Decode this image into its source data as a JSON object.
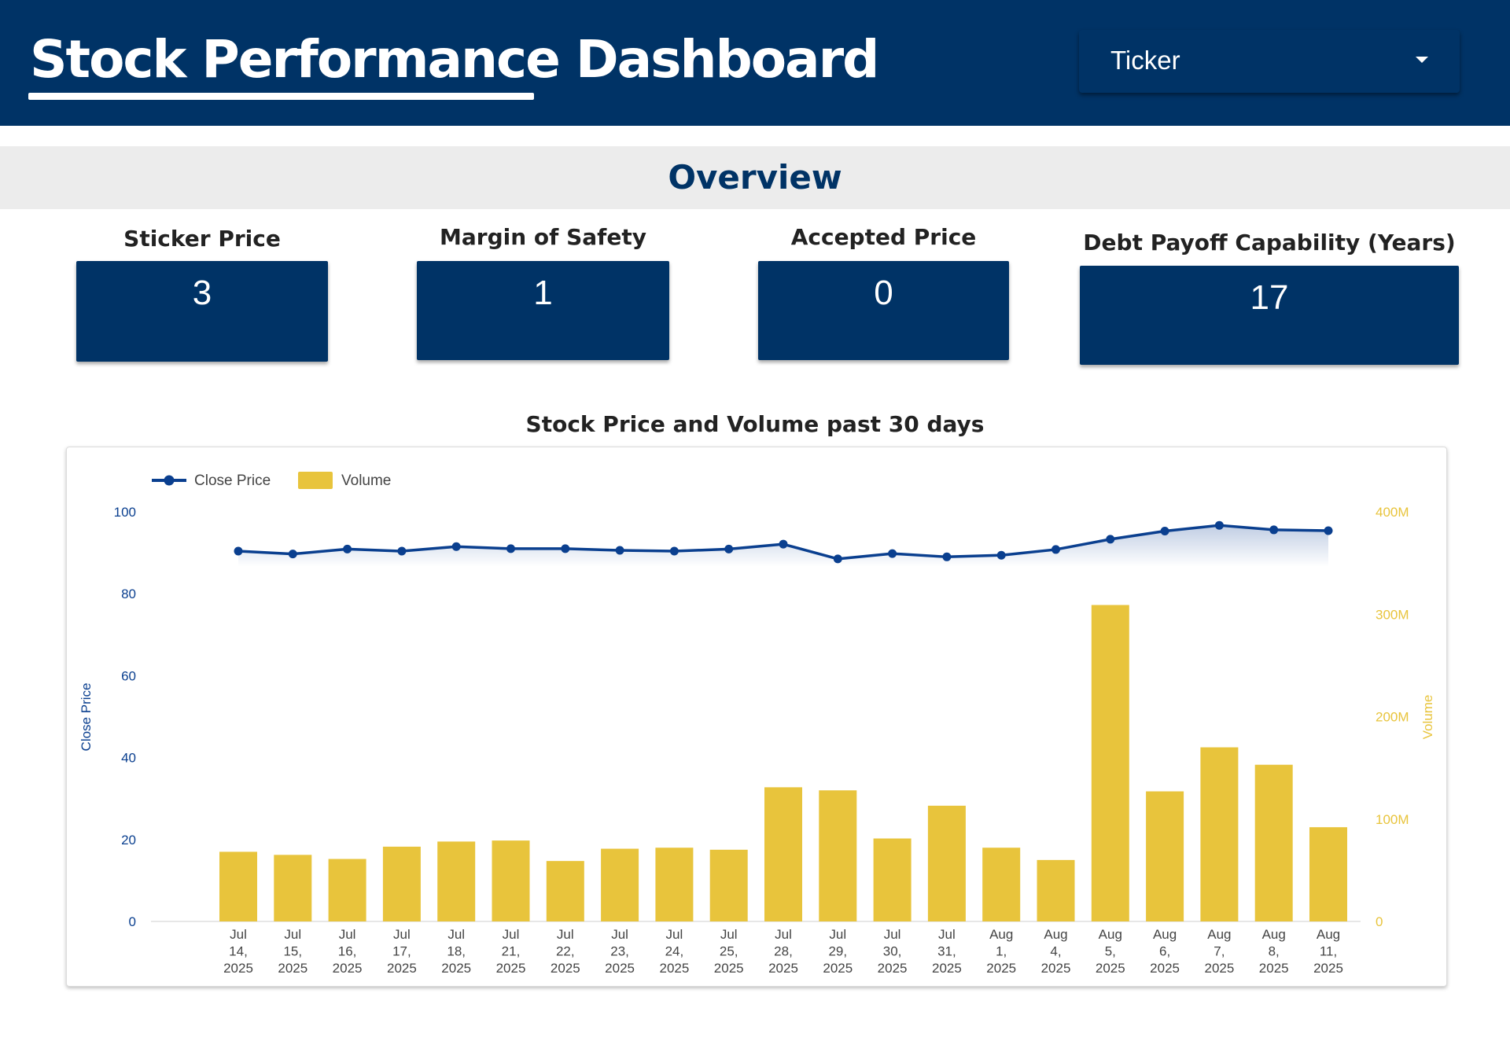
{
  "header": {
    "title": "Stock Performance Dashboard",
    "ticker_placeholder": "Ticker",
    "background_color": "#003366"
  },
  "overview": {
    "title": "Overview"
  },
  "kpis": [
    {
      "label": "Sticker Price",
      "value": "3"
    },
    {
      "label": "Margin of Safety",
      "value": "1"
    },
    {
      "label": "Accepted Price",
      "value": "0"
    },
    {
      "label": "Debt Payoff Capability (Years)",
      "value": "17"
    }
  ],
  "chart_title": "Stock Price and Volume past 30 days",
  "chart_data": {
    "type": "bar",
    "title": "Stock Price and Volume past 30 days",
    "categories": [
      "Jul 14, 2025",
      "Jul 15, 2025",
      "Jul 16, 2025",
      "Jul 17, 2025",
      "Jul 18, 2025",
      "Jul 21, 2025",
      "Jul 22, 2025",
      "Jul 23, 2025",
      "Jul 24, 2025",
      "Jul 25, 2025",
      "Jul 28, 2025",
      "Jul 29, 2025",
      "Jul 30, 2025",
      "Jul 31, 2025",
      "Aug 1, 2025",
      "Aug 4, 2025",
      "Aug 5, 2025",
      "Aug 6, 2025",
      "Aug 7, 2025",
      "Aug 8, 2025",
      "Aug 11, 2025"
    ],
    "series": [
      {
        "name": "Close Price",
        "type": "line",
        "axis": "left",
        "color": "#0a3f8f",
        "values": [
          90.4,
          89.7,
          90.9,
          90.4,
          91.5,
          91.0,
          91.0,
          90.6,
          90.4,
          90.9,
          92.1,
          88.5,
          89.8,
          89.0,
          89.4,
          90.8,
          93.3,
          95.3,
          96.7,
          95.6,
          95.4
        ]
      },
      {
        "name": "Volume",
        "type": "bar",
        "axis": "right",
        "color": "#e8c43c",
        "values": [
          68000000,
          65000000,
          61000000,
          73000000,
          78000000,
          79000000,
          59000000,
          71000000,
          72000000,
          70000000,
          131000000,
          128000000,
          81000000,
          113000000,
          72000000,
          60000000,
          309000000,
          127000000,
          170000000,
          153000000,
          92000000
        ]
      }
    ],
    "ylabel": "Close Price",
    "y2label": "Volume",
    "ylim": [
      0,
      100
    ],
    "y2lim": [
      0,
      400000000
    ],
    "yticks": [
      "0",
      "20",
      "40",
      "60",
      "80",
      "100"
    ],
    "y2ticks": [
      "0",
      "100M",
      "200M",
      "300M",
      "400M"
    ],
    "legend_position": "top-left",
    "grid": false
  }
}
